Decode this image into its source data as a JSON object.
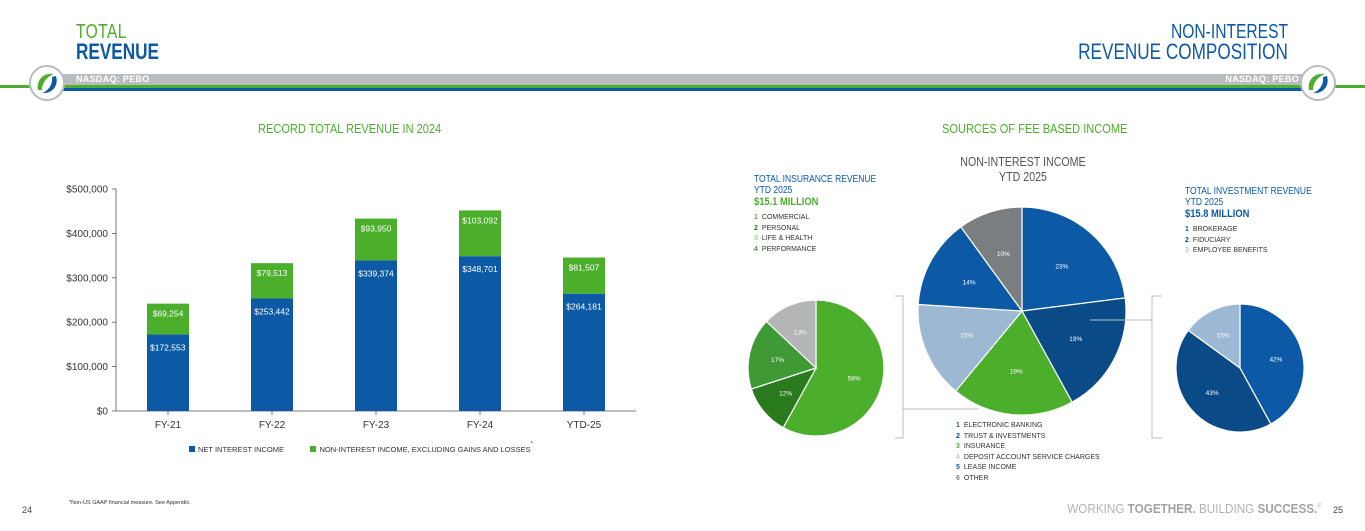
{
  "left": {
    "title_line1": "TOTAL",
    "title_line2": "REVENUE",
    "ticker": "NASDAQ: PEBO",
    "section_title": "RECORD TOTAL REVENUE IN 2024",
    "footnote": "*Non-US GAAP financial measure. See Appendix.",
    "page_number": "24"
  },
  "right": {
    "title_line1": "NON-INTEREST",
    "title_line2": "REVENUE COMPOSITION",
    "ticker": "NASDAQ: PEBO",
    "section_title": "SOURCES OF FEE BASED INCOME",
    "page_number": "25",
    "tagline_a": "WORKING ",
    "tagline_b": "TOGETHER.",
    "tagline_c": " BUILDING ",
    "tagline_d": "SUCCESS.",
    "tagline_mark": "®"
  },
  "colors": {
    "blue": "#0c5aa6",
    "green": "#4caf2c",
    "dark_blue": "#0a4a87",
    "light_blue": "#9cb8d3",
    "gray": "#7b7e80"
  },
  "chart_data": [
    {
      "type": "bar",
      "stacked": true,
      "categories": [
        "FY-21",
        "FY-22",
        "FY-23",
        "FY-24",
        "YTD-25"
      ],
      "series": [
        {
          "name": "NET INTEREST INCOME",
          "values": [
            172553,
            253442,
            339374,
            348701,
            264181
          ],
          "labels": [
            "$172,553",
            "$253,442",
            "$339,374",
            "$348,701",
            "$264,181"
          ],
          "color": "#0c5aa6"
        },
        {
          "name": "NON-INTEREST INCOME, EXCLUDING GAINS AND LOSSES",
          "values": [
            69254,
            79513,
            93950,
            103092,
            81507
          ],
          "labels": [
            "$69,254",
            "$79,513",
            "$93,950",
            "$103,092",
            "$81,507"
          ],
          "color": "#4caf2c"
        }
      ],
      "legend_mark": "*",
      "yticks": [
        "$0",
        "$100,000",
        "$200,000",
        "$300,000",
        "$400,000",
        "$500,000"
      ],
      "ylim": [
        0,
        500000
      ],
      "legend": "bottom"
    },
    {
      "type": "pie",
      "title_line1": "NON-INTEREST INCOME",
      "title_line2": "YTD 2025",
      "labels": [
        "ELECTRONIC BANKING",
        "TRUST & INVESTMENTS",
        "INSURANCE",
        "DEPOSIT ACCOUNT SERVICE CHARGES",
        "LEASE INCOME",
        "OTHER"
      ],
      "values": [
        23,
        19,
        19,
        15,
        14,
        10
      ],
      "value_labels": [
        "23%",
        "19%",
        "19%",
        "15%",
        "14%",
        "10%"
      ],
      "colors": [
        "#0c5aa6",
        "#0a4a87",
        "#4caf2c",
        "#9cb8d3",
        "#0c5aa6",
        "#7b7e80"
      ],
      "numbers": [
        "1",
        "2",
        "3",
        "4",
        "5",
        "6"
      ]
    },
    {
      "type": "pie",
      "head_line1": "TOTAL INSURANCE REVENUE",
      "head_line2": "YTD 2025",
      "amount": "$15.1 MILLION",
      "labels": [
        "COMMERCIAL",
        "PERSONAL",
        "LIFE & HEALTH",
        "PERFORMANCE"
      ],
      "values": [
        58,
        12,
        17,
        13
      ],
      "value_labels": [
        "58%",
        "12%",
        "17%",
        "13%"
      ],
      "colors": [
        "#4caf2c",
        "#2a7a1e",
        "#3f9a35",
        "#b3b5b7"
      ],
      "numbers": [
        "1",
        "2",
        "3",
        "4"
      ]
    },
    {
      "type": "pie",
      "head_line1": "TOTAL INVESTMENT REVENUE",
      "head_line2": "YTD 2025",
      "amount": "$15.8 MILLION",
      "labels": [
        "BROKERAGE",
        "FIDUCIARY",
        "EMPLOYEE BENEFITS"
      ],
      "values": [
        42,
        43,
        15
      ],
      "value_labels": [
        "42%",
        "43%",
        "15%"
      ],
      "colors": [
        "#0c5aa6",
        "#0a4a87",
        "#9cb8d3"
      ],
      "numbers": [
        "1",
        "2",
        "3"
      ]
    }
  ]
}
